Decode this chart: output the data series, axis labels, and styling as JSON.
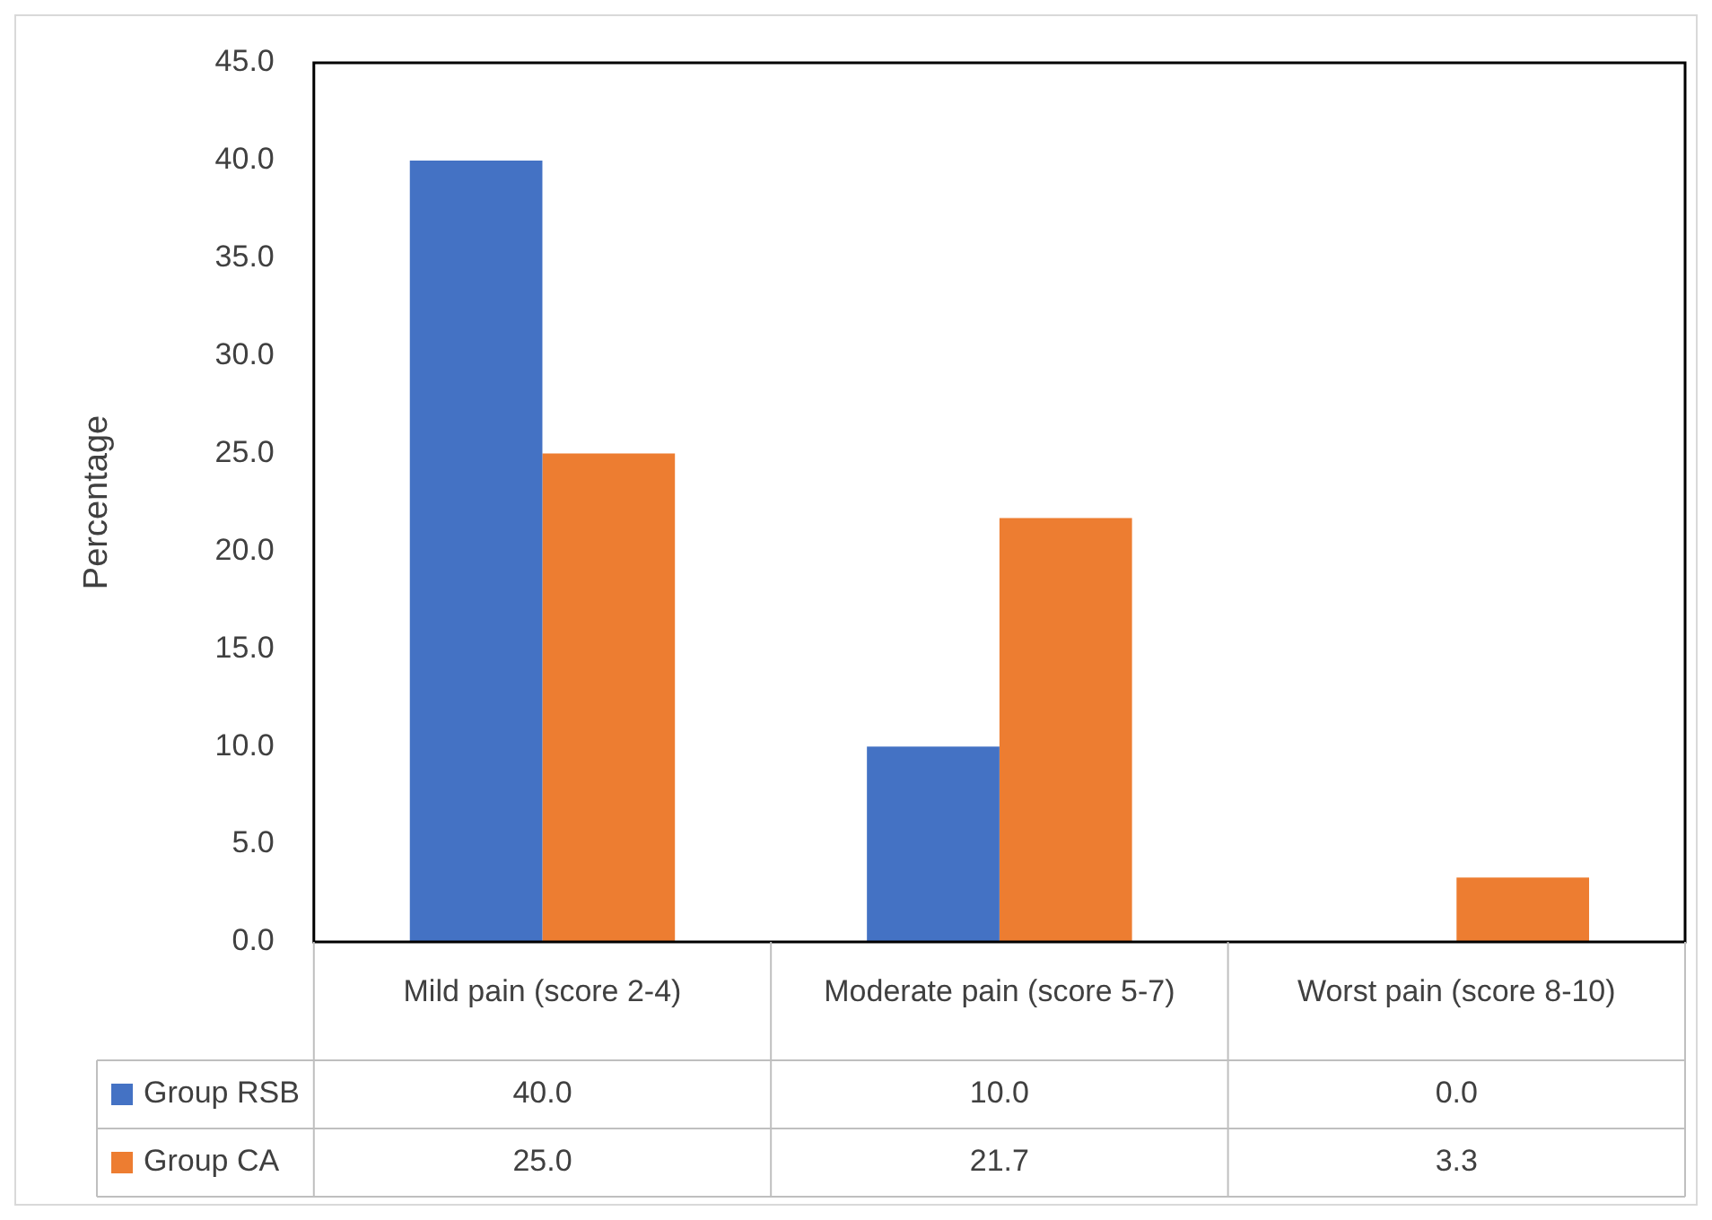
{
  "chart_data": {
    "type": "bar",
    "ylabel": "Percentage",
    "categories": [
      "Mild pain (score 2-4)",
      "Moderate pain (score 5-7)",
      "Worst pain (score 8-10)"
    ],
    "series": [
      {
        "name": "Group RSB",
        "color": "#4472c4",
        "values": [
          40.0,
          10.0,
          0.0
        ],
        "value_labels": [
          "40.0",
          "10.0",
          "0.0"
        ]
      },
      {
        "name": "Group CA",
        "color": "#ed7d31",
        "values": [
          25.0,
          21.7,
          3.3
        ],
        "value_labels": [
          "25.0",
          "21.7",
          "3.3"
        ]
      }
    ],
    "ylim": [
      0,
      45
    ],
    "yticks": [
      {
        "value": 0,
        "label": "0.0"
      },
      {
        "value": 5,
        "label": "5.0"
      },
      {
        "value": 10,
        "label": "10.0"
      },
      {
        "value": 15,
        "label": "15.0"
      },
      {
        "value": 20,
        "label": "20.0"
      },
      {
        "value": 25,
        "label": "25.0"
      },
      {
        "value": 30,
        "label": "30.0"
      },
      {
        "value": 35,
        "label": "35.0"
      },
      {
        "value": 40,
        "label": "40.0"
      },
      {
        "value": 45,
        "label": "45.0"
      }
    ],
    "grid": false,
    "legend": "bottom"
  }
}
